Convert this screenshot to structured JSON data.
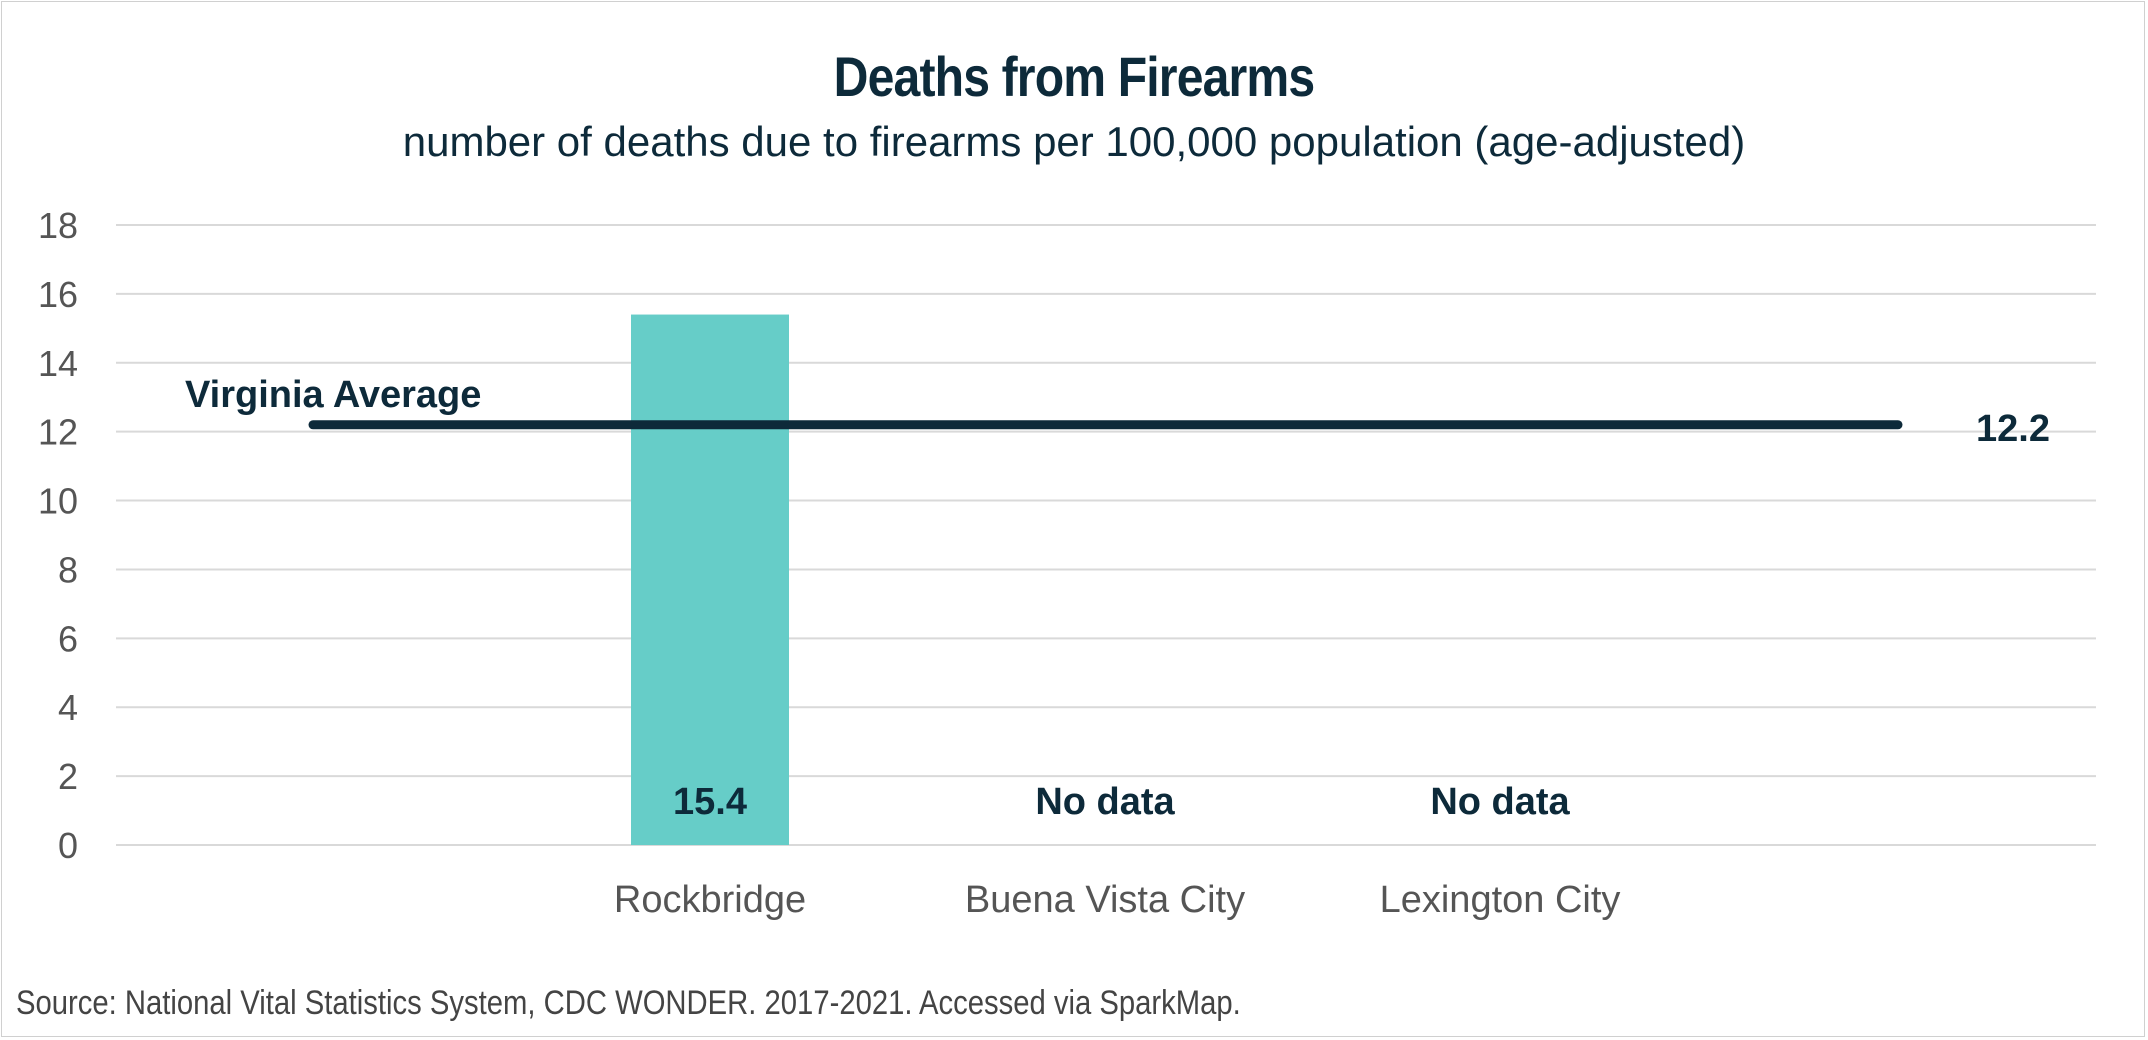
{
  "title": "Deaths from Firearms",
  "subtitle": "number of deaths due to firearms per 100,000 population (age-adjusted)",
  "source": "Source:  National Vital Statistics System, CDC WONDER. 2017-2021. Accessed via SparkMap.",
  "colors": {
    "bar": "#66cdc8",
    "average_line": "#0d2a3a",
    "text_dark": "#0d2a3a",
    "axis_text": "#555555",
    "grid": "#d9d9d9"
  },
  "chart_data": {
    "type": "bar",
    "title": "Deaths from Firearms",
    "subtitle": "number of deaths due to firearms per 100,000 population (age-adjusted)",
    "categories": [
      "Rockbridge",
      "Buena Vista City",
      "Lexington City"
    ],
    "values": [
      15.4,
      null,
      null
    ],
    "data_labels": [
      "15.4",
      "No data",
      "No data"
    ],
    "ylim": [
      0,
      18
    ],
    "yticks": [
      0,
      2,
      4,
      6,
      8,
      10,
      12,
      14,
      16,
      18
    ],
    "xlabel": "",
    "ylabel": "",
    "grid": true,
    "reference_line": {
      "label": "Virginia Average",
      "value": 12.2,
      "value_label": "12.2"
    }
  }
}
